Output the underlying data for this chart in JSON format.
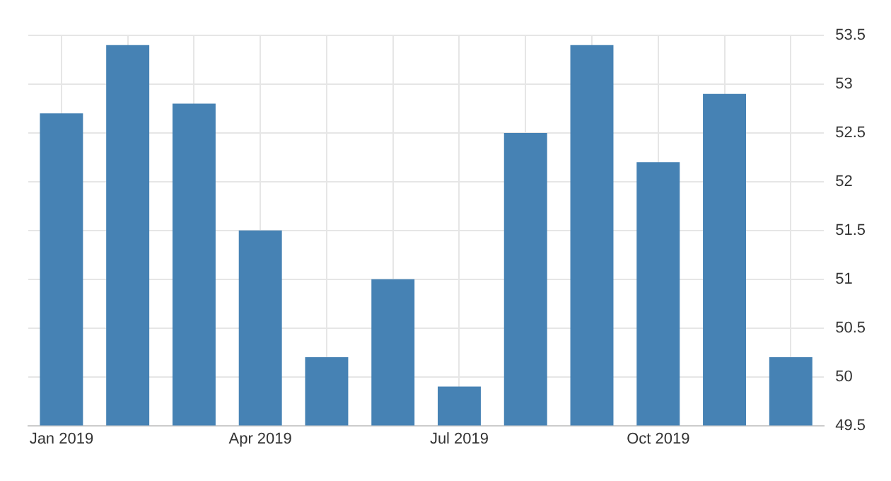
{
  "chart_data": {
    "type": "bar",
    "categories": [
      "Jan 2019",
      null,
      null,
      "Apr 2019",
      null,
      null,
      "Jul 2019",
      null,
      null,
      "Oct 2019",
      null,
      null
    ],
    "values": [
      52.7,
      53.4,
      52.8,
      51.5,
      50.2,
      51.0,
      49.9,
      52.5,
      53.4,
      52.2,
      52.9,
      50.2
    ],
    "color": "#4682b4",
    "ylim": [
      49.5,
      53.5
    ],
    "yticks": [
      49.5,
      50,
      50.5,
      51,
      51.5,
      52,
      52.5,
      53,
      53.5
    ],
    "grid": true
  }
}
